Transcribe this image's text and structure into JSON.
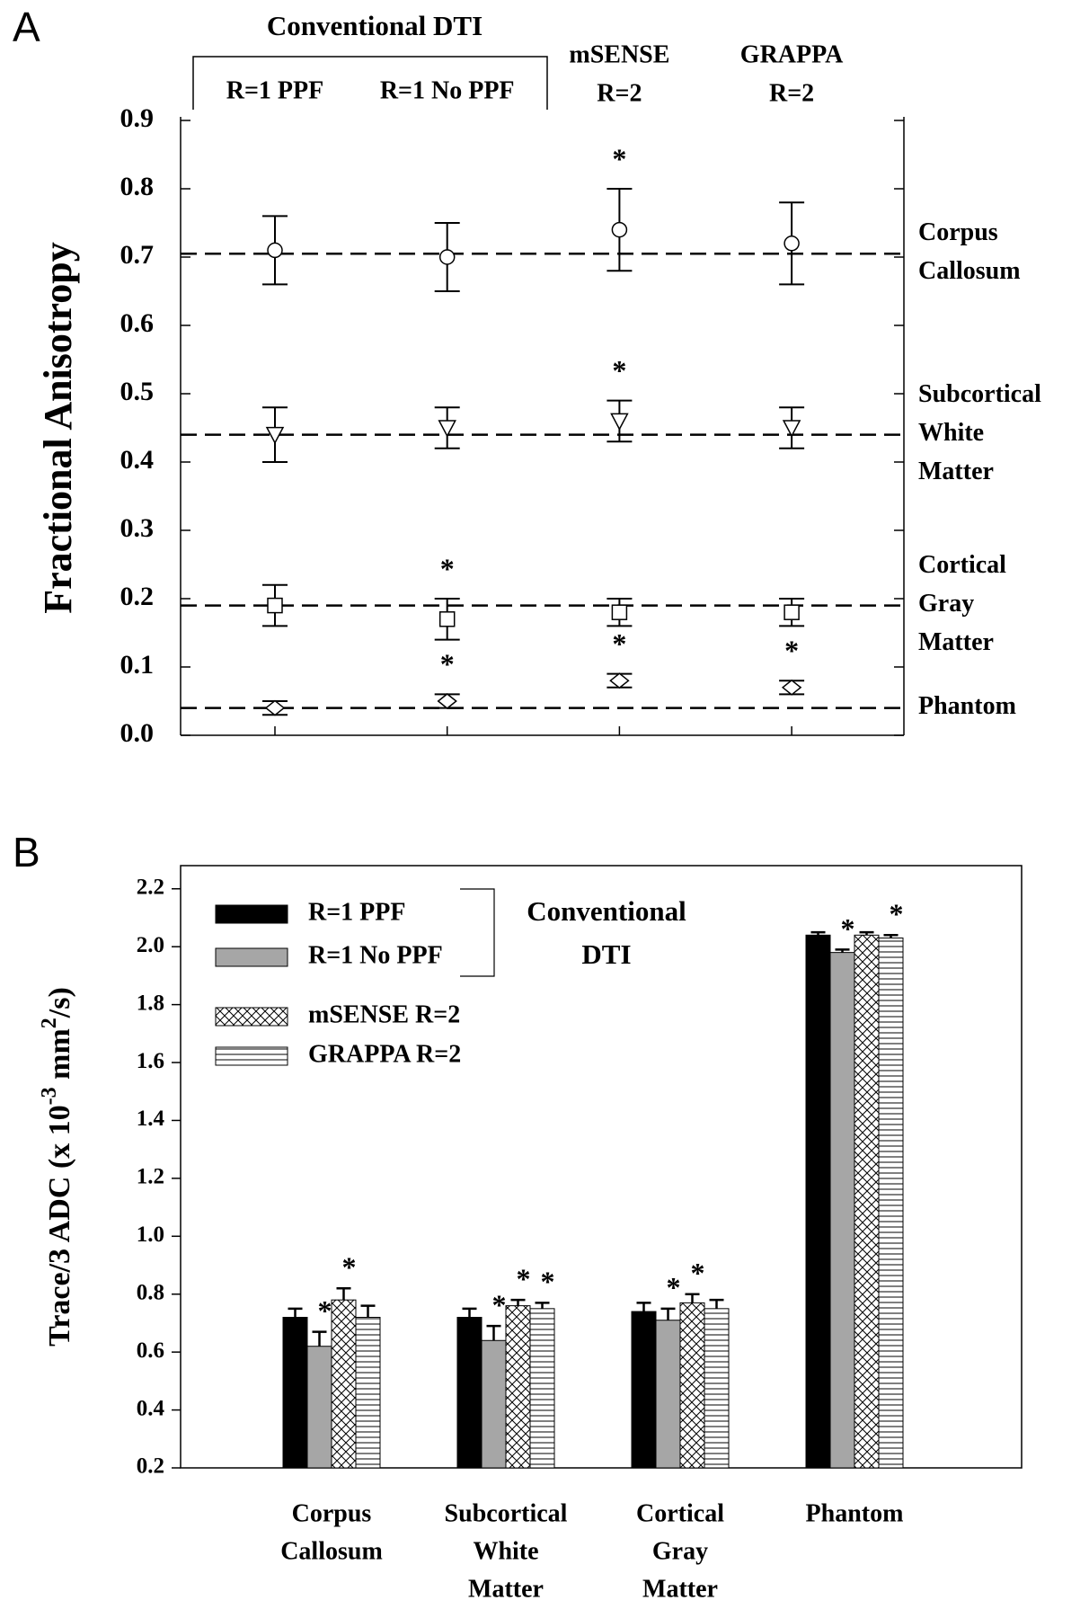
{
  "chart_data": [
    {
      "type": "errorbar",
      "panel": "A",
      "ylabel": "Fractional Anisotropy",
      "group_label": "Conventional DTI",
      "categories": [
        [
          "R=1 PPF"
        ],
        [
          "R=1 No PPF"
        ],
        [
          "mSENSE",
          "R=2"
        ],
        [
          "GRAPPA",
          "R=2"
        ]
      ],
      "ylim": [
        0,
        0.9
      ],
      "yticks": [
        {
          "value": 0,
          "label": "0.0"
        },
        0.1,
        0.2,
        0.3,
        0.4,
        0.5,
        0.6,
        0.7,
        0.8,
        0.9
      ],
      "series": [
        {
          "name": [
            "Corpus",
            "Callosum"
          ],
          "marker": "circle",
          "color": "#000000",
          "reference": 0.705,
          "values": [
            0.71,
            0.7,
            0.74,
            0.72
          ],
          "errors": [
            0.05,
            0.05,
            0.06,
            0.06
          ],
          "annotations": [
            null,
            null,
            "*",
            null
          ]
        },
        {
          "name": [
            "Subcortical",
            "White",
            "Matter"
          ],
          "marker": "triangle-down",
          "color": "#000000",
          "reference": 0.44,
          "values": [
            0.44,
            0.45,
            0.46,
            0.45
          ],
          "errors": [
            0.04,
            0.03,
            0.03,
            0.03
          ],
          "annotations": [
            null,
            null,
            "*",
            null
          ]
        },
        {
          "name": [
            "Cortical",
            "Gray",
            "Matter"
          ],
          "marker": "square",
          "color": "#000000",
          "reference": 0.19,
          "values": [
            0.19,
            0.17,
            0.18,
            0.18
          ],
          "errors": [
            0.03,
            0.03,
            0.02,
            0.02
          ],
          "annotations": [
            null,
            "*",
            null,
            null
          ]
        },
        {
          "name": [
            "Phantom"
          ],
          "marker": "diamond",
          "color": "#000000",
          "reference": 0.04,
          "values": [
            0.04,
            0.05,
            0.08,
            0.07
          ],
          "errors": [
            0.01,
            0.01,
            0.01,
            0.01
          ],
          "annotations": [
            null,
            "*",
            "*",
            "*"
          ]
        }
      ]
    },
    {
      "type": "bar",
      "panel": "B",
      "ylabel": [
        "Trace/3 ADC (x 10",
        "-3",
        " mm",
        "2",
        "/s)"
      ],
      "legend_group": [
        "Conventional",
        "DTI"
      ],
      "categories": [
        [
          "Corpus",
          "Callosum"
        ],
        [
          "Subcortical",
          "White",
          "Matter"
        ],
        [
          "Cortical",
          "Gray",
          "Matter"
        ],
        [
          "Phantom"
        ]
      ],
      "ylim": [
        0.2,
        2.28
      ],
      "yticks": [
        0.2,
        0.4,
        0.6,
        0.8,
        {
          "value": 1,
          "label": "1.0"
        },
        1.2,
        1.4,
        1.6,
        1.8,
        {
          "value": 2,
          "label": "2.0"
        },
        2.2
      ],
      "series": [
        {
          "name": "R=1 PPF",
          "pattern": "solid",
          "color": "#000000",
          "values": [
            0.72,
            0.72,
            0.74,
            2.04
          ],
          "errors": [
            0.03,
            0.03,
            0.03,
            0.01
          ],
          "annotations": [
            null,
            null,
            null,
            null
          ]
        },
        {
          "name": "R=1 No PPF",
          "pattern": "solid",
          "color": "#a6a6a6",
          "values": [
            0.62,
            0.64,
            0.71,
            1.98
          ],
          "errors": [
            0.05,
            0.05,
            0.04,
            0.01
          ],
          "annotations": [
            "*",
            "*",
            "*",
            "*"
          ]
        },
        {
          "name": "mSENSE R=2",
          "pattern": "crosshatch",
          "color": "#000000",
          "values": [
            0.78,
            0.76,
            0.77,
            2.04
          ],
          "errors": [
            0.04,
            0.02,
            0.03,
            0.01
          ],
          "annotations": [
            "*",
            "*",
            "*",
            null
          ]
        },
        {
          "name": "GRAPPA R=2",
          "pattern": "horizontal",
          "color": "#000000",
          "values": [
            0.72,
            0.75,
            0.75,
            2.03
          ],
          "errors": [
            0.04,
            0.02,
            0.03,
            0.01
          ],
          "annotations": [
            null,
            "*",
            null,
            "*"
          ]
        }
      ]
    }
  ]
}
